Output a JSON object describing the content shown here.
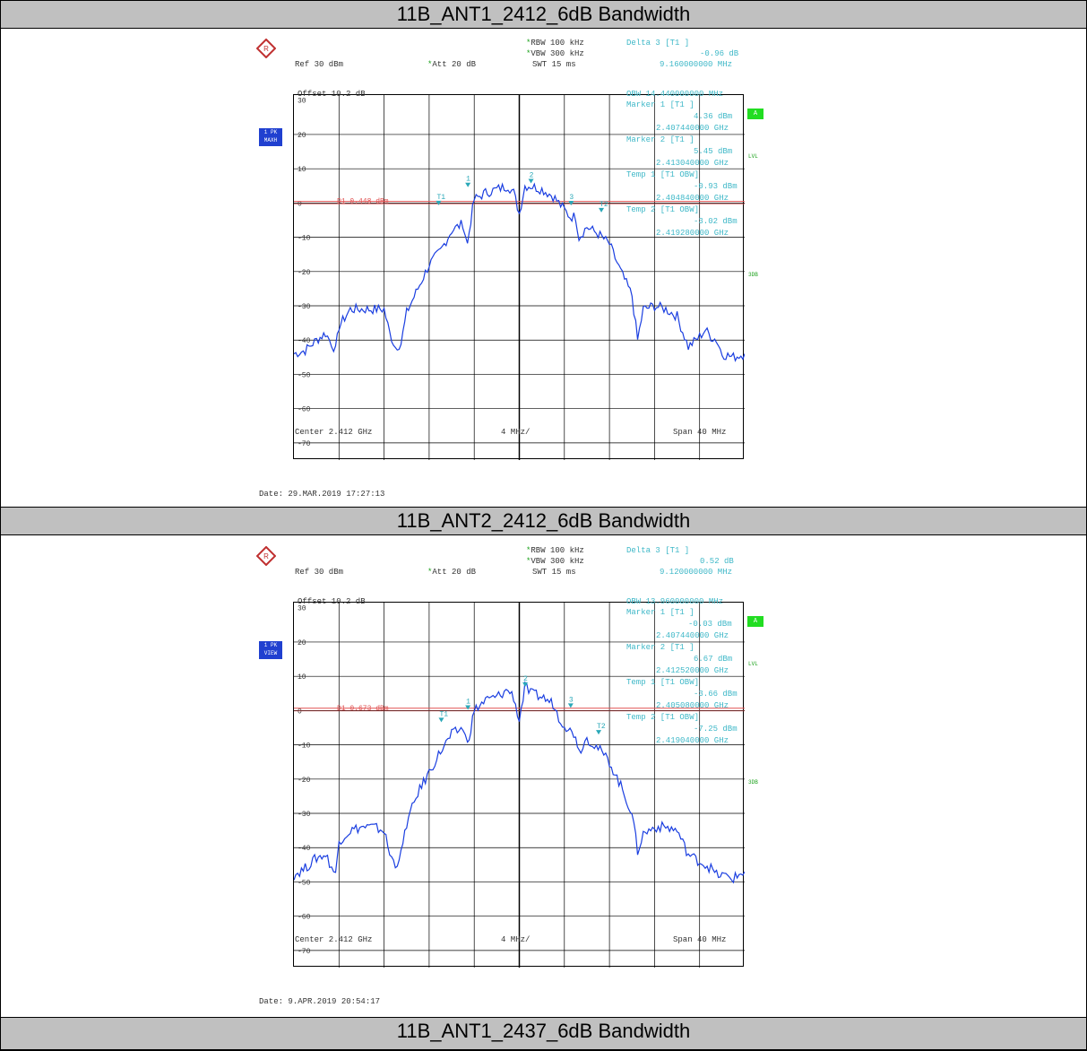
{
  "titles": [
    "11B_ANT1_2412_6dB Bandwidth",
    "11B_ANT2_2412_6dB Bandwidth",
    "11B_ANT1_2437_6dB Bandwidth"
  ],
  "plots": [
    {
      "rbw": "RBW 100 kHz",
      "vbw": "VBW 300 kHz",
      "swt": "SWT 15 ms",
      "ref": "Ref  30 dBm",
      "att": "Att  20 dB",
      "delta_title": "Delta 3 [T1 ]",
      "delta_val": "-0.96 dB",
      "delta_freq": "9.160000000 MHz",
      "obw": "OBW 14.440000000 MHz",
      "m1_title": "Marker 1 [T1 ]",
      "m1_val": "4.36 dBm",
      "m1_freq": "2.407440000 GHz",
      "m2_title": "Marker 2 [T1 ]",
      "m2_val": "5.45 dBm",
      "m2_freq": "2.413040000 GHz",
      "t1_title": "Temp 1 [T1 OBW]",
      "t1_val": "-0.93 dBm",
      "t1_freq": "2.404840000 GHz",
      "t2_title": "Temp 2 [T1 OBW]",
      "t2_val": "-3.02 dBm",
      "t2_freq": "2.419280000 GHz",
      "offset": "Offset  10.2 dB",
      "d1": "D1 0.448 dBm",
      "badge1": "1 PK",
      "badge2": "MAXH",
      "a": "A",
      "lvl": "LVL",
      "tdb": "3DB",
      "center": "Center  2.412 GHz",
      "div": "4 MHz/",
      "span": "Span  40 MHz",
      "date": "Date: 29.MAR.2019  17:27:13"
    },
    {
      "rbw": "RBW 100 kHz",
      "vbw": "VBW 300 kHz",
      "swt": "SWT 15 ms",
      "ref": "Ref  30 dBm",
      "att": "Att  20 dB",
      "delta_title": "Delta 3 [T1 ]",
      "delta_val": "0.52 dB",
      "delta_freq": "9.120000000 MHz",
      "obw": "OBW 13.960000000 MHz",
      "m1_title": "Marker 1 [T1 ]",
      "m1_val": "-0.03 dBm",
      "m1_freq": "2.407440000 GHz",
      "m2_title": "Marker 2 [T1 ]",
      "m2_val": "6.67 dBm",
      "m2_freq": "2.412520000 GHz",
      "t1_title": "Temp 1 [T1 OBW]",
      "t1_val": "-3.66 dBm",
      "t1_freq": "2.405080000 GHz",
      "t2_title": "Temp 2 [T1 OBW]",
      "t2_val": "-7.25 dBm",
      "t2_freq": "2.419040000 GHz",
      "offset": "Offset  10.2 dB",
      "d1": "D1 0.673 dBm",
      "badge1": "1 PK",
      "badge2": "VIEW",
      "a": "A",
      "lvl": "LVL",
      "tdb": "3DB",
      "center": "Center  2.412 GHz",
      "div": "4 MHz/",
      "span": "Span  40 MHz",
      "date": "Date: 9.APR.2019  20:54:17"
    }
  ],
  "chart_data": [
    {
      "type": "line",
      "title": "11B_ANT1_2412_6dB Bandwidth",
      "x_unit": "MHz offset from center 2.412 GHz",
      "xlim": [
        -20,
        20
      ],
      "ylim": [
        -75,
        30
      ],
      "yticks": [
        30,
        20,
        10,
        0,
        -10,
        -20,
        -30,
        -40,
        -50,
        -60,
        -70
      ],
      "series": [
        {
          "x": [
            -20,
            -19,
            -18,
            -17.2,
            -16.3,
            -16,
            -15,
            -14,
            -13,
            -12,
            -11.5,
            -11,
            -10.5,
            -10,
            -9,
            -8,
            -7,
            -6,
            -5,
            -4.6,
            -4.3,
            -4,
            -3,
            -2,
            -1,
            -0.5,
            0,
            0.5,
            1,
            2,
            3,
            3.5,
            4,
            4.5,
            5,
            5.3,
            6,
            7,
            8,
            9,
            10,
            10.5,
            11,
            12,
            13,
            14,
            15,
            16,
            16.5,
            17,
            17.5,
            18,
            19,
            20
          ],
          "values": [
            -44,
            -43,
            -40,
            -38,
            -43,
            -36,
            -31,
            -31,
            -31,
            -31,
            -38,
            -42,
            -41,
            -32,
            -25,
            -18,
            -14,
            -8,
            -6,
            -12,
            -5,
            1,
            3,
            4,
            5,
            3,
            -3,
            5,
            5,
            4,
            2,
            0,
            -2,
            -4,
            -4,
            -10,
            -7,
            -9,
            -12,
            -20,
            -27,
            -40,
            -31,
            -30,
            -31,
            -33,
            -42,
            -39,
            -37,
            -39,
            -40,
            -44,
            -45,
            -44
          ]
        }
      ],
      "markers": [
        {
          "label": "1",
          "x": -4.56,
          "y": 4.36
        },
        {
          "label": "2",
          "x": 1.04,
          "y": 5.45
        },
        {
          "label": "3",
          "x": 4.6,
          "y": -0.96
        },
        {
          "label": "T1",
          "x": -7.16,
          "y": -0.93
        },
        {
          "label": "T2",
          "x": 7.28,
          "y": -3.02
        }
      ],
      "display_line": 0.448
    },
    {
      "type": "line",
      "title": "11B_ANT2_2412_6dB Bandwidth",
      "x_unit": "MHz offset from center 2.412 GHz",
      "xlim": [
        -20,
        20
      ],
      "ylim": [
        -75,
        30
      ],
      "yticks": [
        30,
        20,
        10,
        0,
        -10,
        -20,
        -30,
        -40,
        -50,
        -60,
        -70
      ],
      "series": [
        {
          "x": [
            -20,
            -19,
            -18,
            -17.2,
            -16.3,
            -16,
            -15,
            -14,
            -13,
            -12,
            -11.5,
            -11,
            -10.5,
            -10,
            -9,
            -8,
            -7,
            -6,
            -5,
            -4.6,
            -4.3,
            -4,
            -3,
            -2,
            -1,
            -0.5,
            0,
            0.5,
            1,
            2,
            3,
            3.5,
            4,
            4.5,
            5,
            5.3,
            6,
            7,
            8,
            9,
            10,
            10.5,
            11,
            12,
            13,
            14,
            15,
            16,
            16.5,
            17,
            17.5,
            18,
            19,
            20
          ],
          "values": [
            -48,
            -46,
            -43,
            -42,
            -48,
            -38,
            -35,
            -34,
            -34,
            -35,
            -42,
            -45,
            -42,
            -33,
            -24,
            -18,
            -12,
            -7,
            -5,
            -10,
            -5,
            0,
            3,
            4,
            6,
            4,
            -3,
            7,
            5,
            4,
            2,
            -2,
            -4,
            -6,
            -7,
            -12,
            -8,
            -11,
            -15,
            -22,
            -30,
            -41,
            -36,
            -34,
            -34,
            -35,
            -42,
            -44,
            -45,
            -46,
            -48,
            -48,
            -49,
            -47
          ]
        }
      ],
      "markers": [
        {
          "label": "1",
          "x": -4.56,
          "y": -0.03
        },
        {
          "label": "2",
          "x": 0.52,
          "y": 6.67
        },
        {
          "label": "3",
          "x": 4.56,
          "y": 0.52
        },
        {
          "label": "T1",
          "x": -6.92,
          "y": -3.66
        },
        {
          "label": "T2",
          "x": 7.04,
          "y": -7.25
        }
      ],
      "display_line": 0.673
    }
  ]
}
